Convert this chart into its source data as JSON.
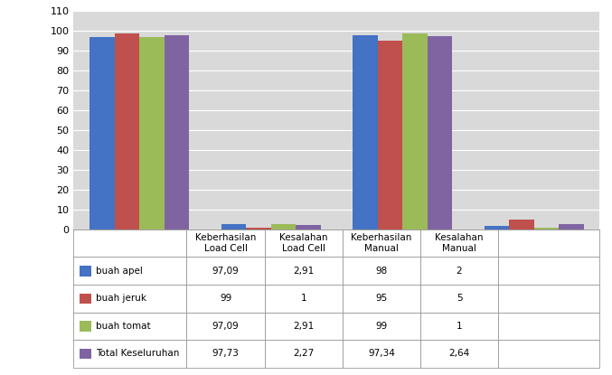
{
  "categories": [
    "Keberhasilan\nLoad Cell",
    "Kesalahan\nLoad Cell",
    "Keberhasilan\nManual",
    "Kesalahan\nManual"
  ],
  "series": [
    {
      "label": "buah apel",
      "values": [
        97.09,
        2.91,
        98,
        2
      ],
      "color": "#4472C4"
    },
    {
      "label": "buah jeruk",
      "values": [
        99,
        1,
        95,
        5
      ],
      "color": "#C0504D"
    },
    {
      "label": "buah tomat",
      "values": [
        97.09,
        2.91,
        99,
        1
      ],
      "color": "#9BBB59"
    },
    {
      "label": "Total Keseluruhan",
      "values": [
        97.73,
        2.27,
        97.34,
        2.64
      ],
      "color": "#8064A2"
    }
  ],
  "ylim": [
    0,
    110
  ],
  "yticks": [
    0,
    10,
    20,
    30,
    40,
    50,
    60,
    70,
    80,
    90,
    100,
    110
  ],
  "table_data": [
    [
      "buah apel",
      "97,09",
      "2,91",
      "98",
      "2"
    ],
    [
      "buah jeruk",
      "99",
      "1",
      "95",
      "5"
    ],
    [
      "buah tomat",
      "97,09",
      "2,91",
      "99",
      "1"
    ],
    [
      "Total Keseluruhan",
      "97,73",
      "2,27",
      "97,34",
      "2,64"
    ]
  ],
  "col_headers": [
    "Keberhasilan\nLoad Cell",
    "Kesalahan\nLoad Cell",
    "Keberhasilan\nManual",
    "Kesalahan\nManual"
  ],
  "plot_bg_color": "#D9D9D9",
  "bar_width": 0.17,
  "group_positions": [
    0.45,
    1.35,
    2.25,
    3.15
  ]
}
